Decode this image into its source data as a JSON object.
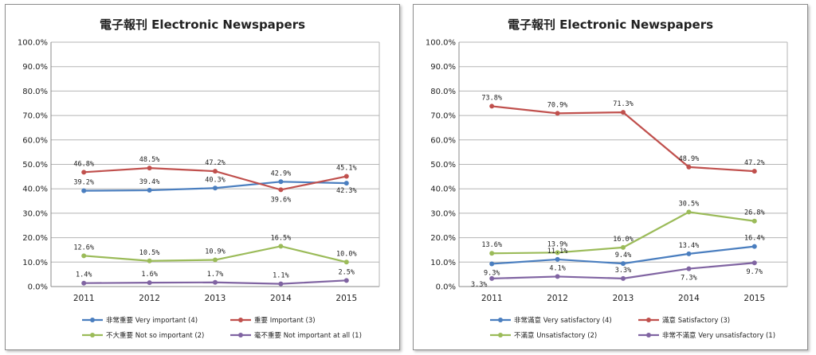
{
  "chart_data": [
    {
      "type": "line",
      "title": "電子報刊  Electronic Newspapers",
      "categories": [
        "2011",
        "2012",
        "2013",
        "2014",
        "2015"
      ],
      "ylim": [
        0,
        100
      ],
      "y_tick_labels": [
        "0.0%",
        "10.0%",
        "20.0%",
        "30.0%",
        "40.0%",
        "50.0%",
        "60.0%",
        "70.0%",
        "80.0%",
        "90.0%",
        "100.0%"
      ],
      "grid": true,
      "legend_position": "bottom",
      "series": [
        {
          "name": "非常重要 Very important (4)",
          "color": "#4a7ebf",
          "values": [
            39.2,
            39.4,
            40.3,
            42.9,
            42.3
          ],
          "labels": [
            "39.2%",
            "39.4%",
            "40.3%",
            "42.9%",
            "42.3%"
          ]
        },
        {
          "name": "重要 Important (3)",
          "color": "#c0504d",
          "values": [
            46.8,
            48.5,
            47.2,
            39.6,
            45.1
          ],
          "labels": [
            "46.8%",
            "48.5%",
            "47.2%",
            "39.6%",
            "45.1%"
          ]
        },
        {
          "name": "不大重要 Not so important (2)",
          "color": "#9bbb59",
          "values": [
            12.6,
            10.5,
            10.9,
            16.5,
            10.0
          ],
          "labels": [
            "12.6%",
            "10.5%",
            "10.9%",
            "16.5%",
            "10.0%"
          ]
        },
        {
          "name": "毫不重要 Not important at all (1)",
          "color": "#8064a2",
          "values": [
            1.4,
            1.6,
            1.7,
            1.1,
            2.5
          ],
          "labels": [
            "1.4%",
            "1.6%",
            "1.7%",
            "1.1%",
            "2.5%"
          ]
        }
      ]
    },
    {
      "type": "line",
      "title": "電子報刊  Electronic Newspapers",
      "categories": [
        "2011",
        "2012",
        "2013",
        "2014",
        "2015"
      ],
      "ylim": [
        0,
        100
      ],
      "y_tick_labels": [
        "0.0%",
        "10.0%",
        "20.0%",
        "30.0%",
        "40.0%",
        "50.0%",
        "60.0%",
        "70.0%",
        "80.0%",
        "90.0%",
        "100.0%"
      ],
      "grid": true,
      "legend_position": "bottom",
      "series": [
        {
          "name": "非常滿意  Very satisfactory (4)",
          "color": "#4a7ebf",
          "values": [
            9.3,
            11.1,
            9.4,
            13.4,
            16.4
          ],
          "labels": [
            "9.3%",
            "11.1%",
            "9.4%",
            "13.4%",
            "16.4%"
          ]
        },
        {
          "name": "滿意 Satisfactory (3)",
          "color": "#c0504d",
          "values": [
            73.8,
            70.9,
            71.3,
            48.9,
            47.2
          ],
          "labels": [
            "73.8%",
            "70.9%",
            "71.3%",
            "48.9%",
            "47.2%"
          ]
        },
        {
          "name": "不滿意  Unsatisfactory (2)",
          "color": "#9bbb59",
          "values": [
            13.6,
            13.9,
            16.0,
            30.5,
            26.8
          ],
          "labels": [
            "13.6%",
            "13.9%",
            "16.0%",
            "30.5%",
            "26.8%"
          ]
        },
        {
          "name": "非常不滿意  Very unsatisfactory (1)",
          "color": "#8064a2",
          "values": [
            3.3,
            4.1,
            3.3,
            7.3,
            9.7
          ],
          "labels": [
            "3.3%",
            "4.1%",
            "3.3%",
            "7.3%",
            "9.7%"
          ]
        }
      ]
    }
  ]
}
